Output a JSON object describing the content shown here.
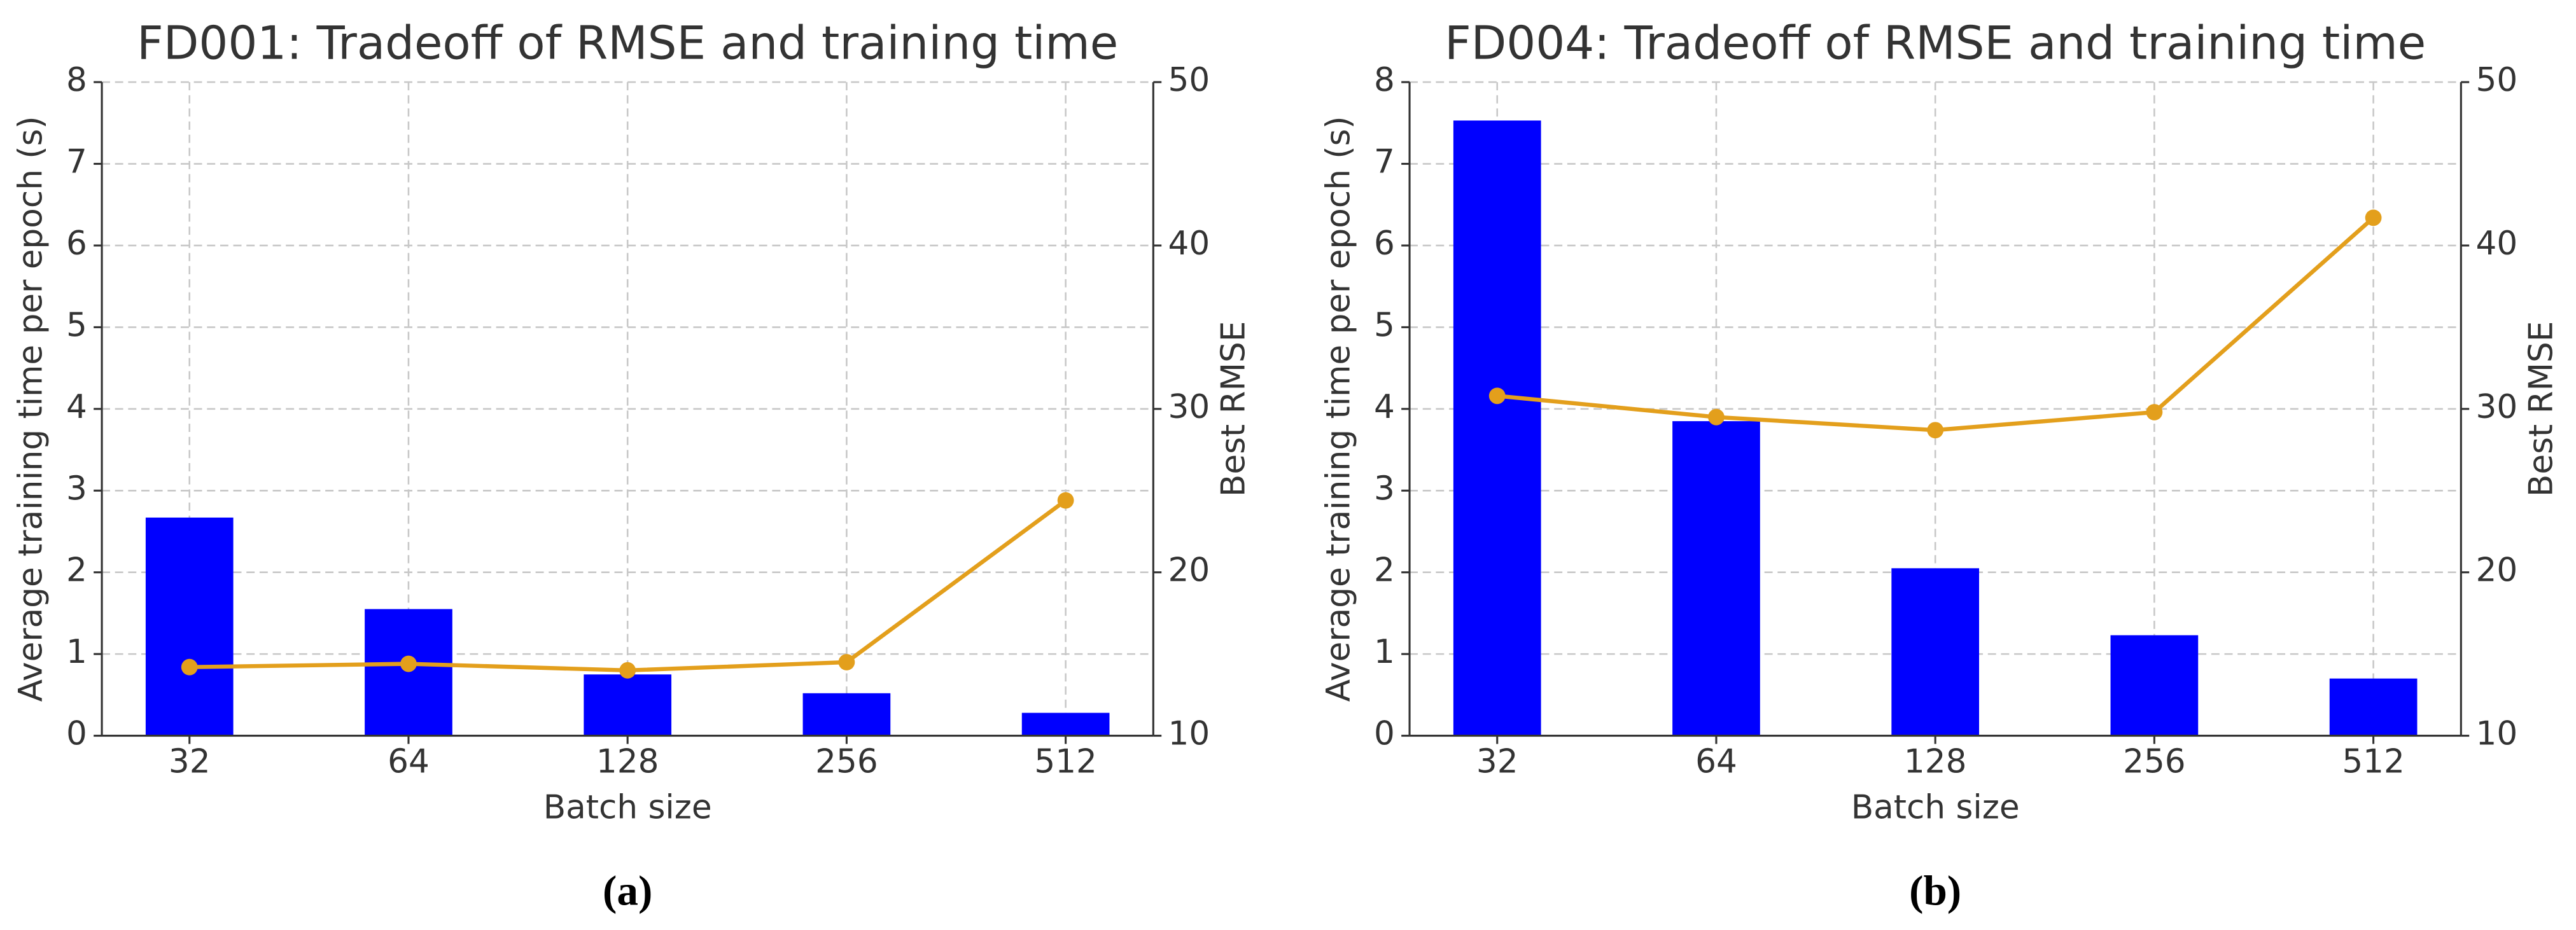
{
  "chart_data": [
    {
      "type": "bar",
      "title": "FD001: Tradeoff of RMSE and training time",
      "caption": "(a)",
      "xlabel": "Batch size",
      "ylabel": "Average training time per epoch (s)",
      "y2label": "Best RMSE",
      "categories": [
        "32",
        "64",
        "128",
        "256",
        "512"
      ],
      "series": [
        {
          "type": "bar",
          "color": "#0000ff",
          "values": [
            2.67,
            1.55,
            0.75,
            0.52,
            0.28
          ]
        },
        {
          "type": "line",
          "color": "#e39f1c",
          "axis": "y2",
          "values": [
            14.2,
            14.4,
            14.0,
            14.5,
            24.4
          ]
        }
      ],
      "ylim": [
        0,
        8
      ],
      "yticks": [
        0,
        1,
        2,
        3,
        4,
        5,
        6,
        7,
        8
      ],
      "y2lim": [
        10,
        50
      ],
      "y2ticks": [
        10,
        20,
        30,
        40,
        50
      ],
      "grid": true
    },
    {
      "type": "bar",
      "title": "FD004: Tradeoff of RMSE and training time",
      "caption": "(b)",
      "xlabel": "Batch size",
      "ylabel": "Average training time per epoch (s)",
      "y2label": "Best RMSE",
      "categories": [
        "32",
        "64",
        "128",
        "256",
        "512"
      ],
      "series": [
        {
          "type": "bar",
          "color": "#0000ff",
          "values": [
            7.53,
            3.85,
            2.05,
            1.23,
            0.7
          ]
        },
        {
          "type": "line",
          "color": "#e39f1c",
          "axis": "y2",
          "values": [
            30.8,
            29.5,
            28.7,
            29.8,
            41.7
          ]
        }
      ],
      "ylim": [
        0,
        8
      ],
      "yticks": [
        0,
        1,
        2,
        3,
        4,
        5,
        6,
        7,
        8
      ],
      "y2lim": [
        10,
        50
      ],
      "y2ticks": [
        10,
        20,
        30,
        40,
        50
      ],
      "grid": true
    }
  ]
}
